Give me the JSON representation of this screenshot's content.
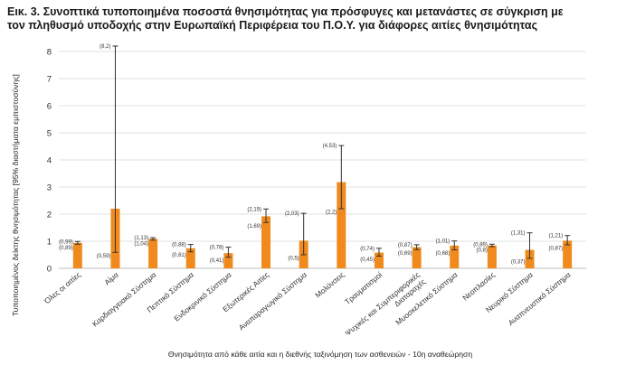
{
  "title_lines": [
    "Εικ. 3. Συνοπτικά τυποποιημένα ποσοστά θνησιμότητας για πρόσφυγες και μετανάστες σε σύγκριση με",
    "τον πληθυσμό υποδοχής στην Ευρωπαϊκή Περιφέρεια του Π.Ο.Υ. για διάφορες αιτίες θνησιμότητας"
  ],
  "chart_data": {
    "type": "bar",
    "title": "Εικ. 3. Συνοπτικά τυποποιημένα ποσοστά θνησιμότητας για πρόσφυγες και μετανάστες σε σύγκριση με τον πληθυσμό υποδοχής στην Ευρωπαϊκή Περιφέρεια του Π.Ο.Υ. για διάφορες αιτίες θνησιμότητας",
    "xlabel": "Θνησιμότητα από κάθε αιτία και η διεθνής ταξινόμηση των ασθενειών - 10η αναθεώρηση",
    "ylabel": "Τυποποιημένος δείκτης θνησιμότητας [95% διαστήματα εμπιστοσύνης]",
    "ylim": [
      0,
      8
    ],
    "yticks": [
      0,
      1,
      2,
      3,
      4,
      5,
      6,
      7,
      8
    ],
    "bar_color": "#f08a1c",
    "error_color": "#333333",
    "categories": [
      "Όλες οι αιτίες",
      "Αίμα",
      "Καρδιαγγειακό Σύστημα",
      "Πεπτικό Σύστημα",
      "Ενδοκρινικό Σύστημα",
      "Εξωτερικές Αιτίες",
      "Αναπαραγωγικό Σύστημα",
      "Μολύνσεις",
      "Τραυματισμοί",
      "Ψυχικές και Συμπεριφορικές Διαταραχές",
      "Μυοσκελετικό Σύστημα",
      "Νεοπλασίες",
      "Νευρικό Σύστημα",
      "Αναπνευστικό Σύστημα"
    ],
    "values": [
      0.94,
      2.2,
      1.09,
      0.74,
      0.56,
      1.92,
      1.02,
      3.18,
      0.58,
      0.78,
      0.84,
      0.84,
      0.68,
      1.02
    ],
    "ci_low": [
      0.89,
      0.59,
      1.04,
      0.61,
      0.41,
      1.69,
      0.5,
      2.2,
      0.45,
      0.69,
      0.68,
      0.8,
      0.37,
      0.87
    ],
    "ci_high": [
      0.99,
      8.2,
      1.13,
      0.88,
      0.78,
      2.19,
      2.03,
      4.53,
      0.74,
      0.87,
      1.01,
      0.89,
      1.31,
      1.21
    ],
    "ci_high_labels": [
      "(0,99)",
      "(8,2)",
      "(1,13)",
      "(0,88)",
      "(0,78)",
      "(2,19)",
      "(2,03)",
      "(4,53)",
      "(0,74)",
      "(0,87)",
      "(1,01)",
      "(0,89)",
      "(1,31)",
      "(1,21)"
    ],
    "ci_low_labels": [
      "(0,89)",
      "(0,59)",
      "(1,04)",
      "(0,61)",
      "(0,41)",
      "(1,69)",
      "(0,5)",
      "(2,2)",
      "(0,45)",
      "(0,69)",
      "(0,68)",
      "(0,8)",
      "(0,37)",
      "(0,87)"
    ],
    "category_lines": [
      [
        "Όλες οι αιτίες"
      ],
      [
        "Αίμα"
      ],
      [
        "Καρδιαγγειακό Σύστημα"
      ],
      [
        "Πεπτικό Σύστημα"
      ],
      [
        "Ενδοκρινικό Σύστημα"
      ],
      [
        "Εξωτερικές Αιτίες"
      ],
      [
        "Αναπαραγωγικό Σύστημα"
      ],
      [
        "Μολύνσεις"
      ],
      [
        "Τραυματισμοί"
      ],
      [
        "Ψυχικές και Συμπεριφορικές",
        "Διαταραχές"
      ],
      [
        "Μυοσκελετικό Σύστημα"
      ],
      [
        "Νεοπλασίες"
      ],
      [
        "Νευρικό Σύστημα"
      ],
      [
        "Αναπνευστικό Σύστημα"
      ]
    ]
  }
}
